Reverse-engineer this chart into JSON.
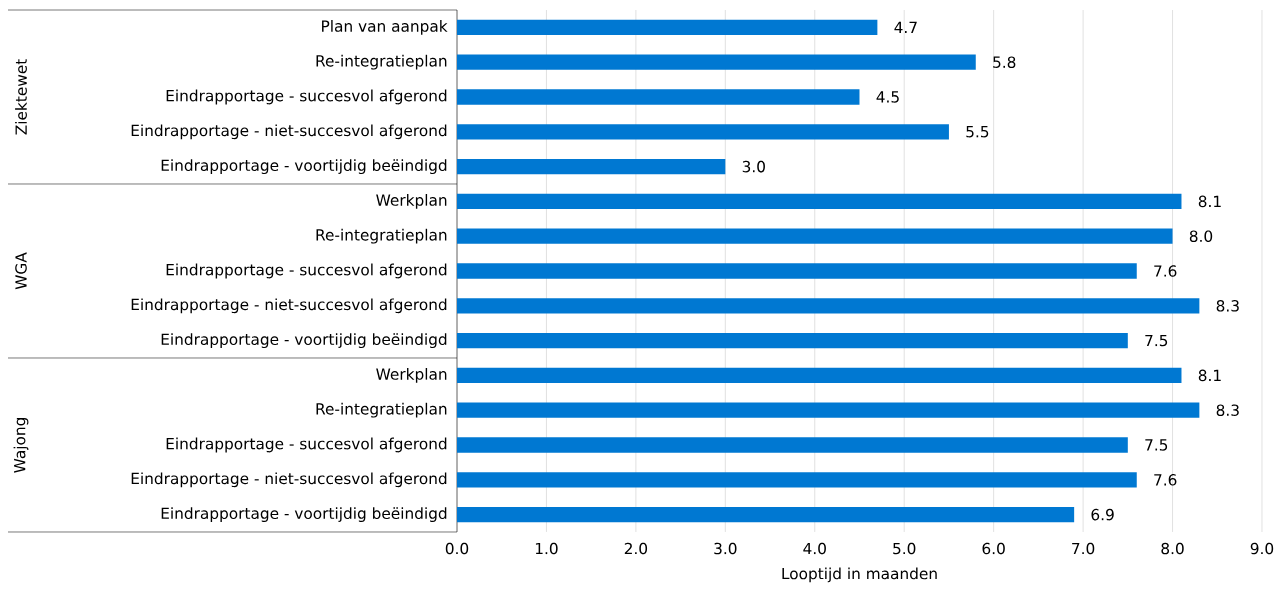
{
  "chart_data": {
    "type": "bar",
    "orientation": "horizontal",
    "xlabel": "Looptijd in maanden",
    "categories": [
      "Plan van aanpak",
      "Re-integratieplan",
      "Eindrapportage - succesvol afgerond",
      "Eindrapportage - niet-succesvol afgerond",
      "Eindrapportage - voortijdig beëindigd",
      "Werkplan",
      "Re-integratieplan",
      "Eindrapportage - succesvol afgerond",
      "Eindrapportage - niet-succesvol afgerond",
      "Eindrapportage - voortijdig beëindigd",
      "Werkplan",
      "Re-integratieplan",
      "Eindrapportage - succesvol afgerond",
      "Eindrapportage - niet-succesvol afgerond",
      "Eindrapportage - voortijdig beëindigd"
    ],
    "values": [
      4.7,
      5.8,
      4.5,
      5.5,
      3.0,
      8.1,
      8.0,
      7.6,
      8.3,
      7.5,
      8.1,
      8.3,
      7.5,
      7.6,
      6.9
    ],
    "value_labels": [
      "4.7",
      "5.8",
      "4.5",
      "5.5",
      "3.0",
      "8.1",
      "8.0",
      "7.6",
      "8.3",
      "7.5",
      "8.1",
      "8.3",
      "7.5",
      "7.6",
      "6.9"
    ],
    "color": "#0078d2",
    "grid": "x",
    "xlim": [
      0,
      9
    ],
    "xticks": [
      {
        "value": 0,
        "label": "0.0"
      },
      {
        "value": 1,
        "label": "1.0"
      },
      {
        "value": 2,
        "label": "2.0"
      },
      {
        "value": 3,
        "label": "3.0"
      },
      {
        "value": 4,
        "label": "4.0"
      },
      {
        "value": 5,
        "label": "5.0"
      },
      {
        "value": 6,
        "label": "6.0"
      },
      {
        "value": 7,
        "label": "7.0"
      },
      {
        "value": 8,
        "label": "8.0"
      },
      {
        "value": 9,
        "label": "9.0"
      }
    ],
    "annotations": [
      "Ziektewet",
      "WGA",
      "Wajong"
    ]
  }
}
